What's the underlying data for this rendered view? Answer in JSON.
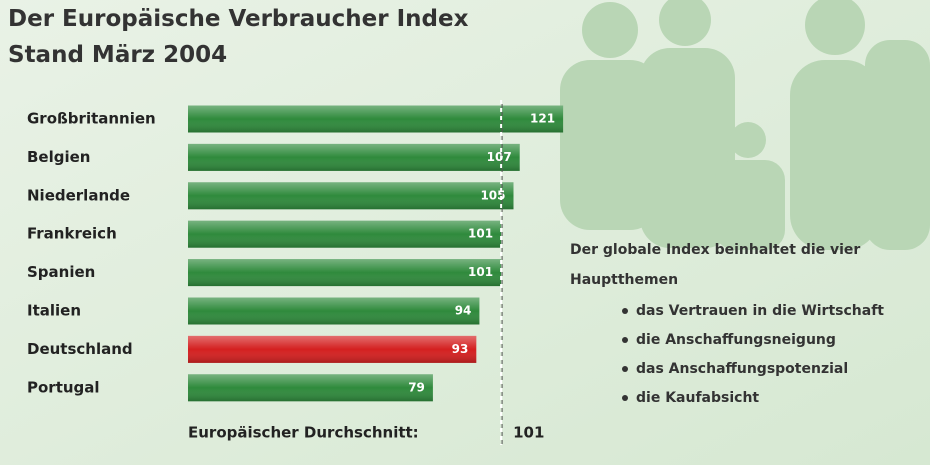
{
  "chart_data": {
    "type": "bar",
    "orientation": "horizontal",
    "title": [
      "Der Europäische Verbraucher Index",
      "Stand März 2004"
    ],
    "categories": [
      "Großbritannien",
      "Belgien",
      "Niederlande",
      "Frankreich",
      "Spanien",
      "Italien",
      "Deutschland",
      "Portugal"
    ],
    "values": [
      121,
      107,
      105,
      101,
      101,
      94,
      93,
      79
    ],
    "colors": [
      "#2f8a3c",
      "#2f8a3c",
      "#2f8a3c",
      "#2f8a3c",
      "#2f8a3c",
      "#2f8a3c",
      "#d42020",
      "#2f8a3c"
    ],
    "average_label": "Europäischer Durchschnitt:",
    "average": 101,
    "note": {
      "heading": "Der globale Index beinhaltet die vier Hauptthemen",
      "items": [
        "das Vertrauen in die Wirtschaft",
        "die Anschaffungsneigung",
        "das Anschaffungspotenzial",
        "die Kaufabsicht"
      ]
    }
  }
}
